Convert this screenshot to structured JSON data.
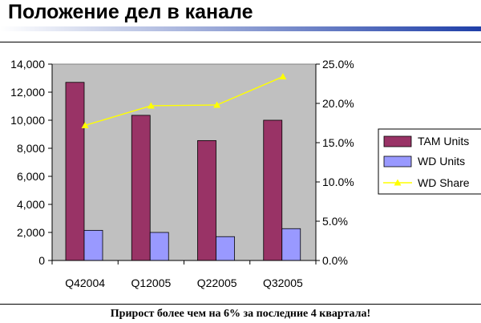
{
  "slide": {
    "title": "Положение дел в канале",
    "caption": "Прирост более чем на 6% за последние 4 квартала!"
  },
  "colors": {
    "title_bar_start": "#ffffff",
    "title_bar_end": "#1f3fa8",
    "plot_background": "#c0c0c0",
    "tam_units": "#993366",
    "wd_units": "#9999ff",
    "wd_share": "#ffff00"
  },
  "chart_data": {
    "type": "bar",
    "categories": [
      "Q42004",
      "Q12005",
      "Q22005",
      "Q32005"
    ],
    "series": [
      {
        "name": "TAM Units",
        "type": "bar",
        "axis": "left",
        "values": [
          12700,
          10350,
          8550,
          10000
        ]
      },
      {
        "name": "WD Units",
        "type": "bar",
        "axis": "left",
        "values": [
          2150,
          2000,
          1700,
          2270
        ]
      },
      {
        "name": "WD Share",
        "type": "line",
        "axis": "right",
        "marker": "triangle",
        "values": [
          0.172,
          0.197,
          0.198,
          0.234
        ]
      }
    ],
    "y_left": {
      "min": 0,
      "max": 14000,
      "ticks": [
        0,
        2000,
        4000,
        6000,
        8000,
        10000,
        12000,
        14000
      ],
      "tick_labels": [
        "0",
        "2,000",
        "4,000",
        "6,000",
        "8,000",
        "10,000",
        "12,000",
        "14,000"
      ]
    },
    "y_right": {
      "min": 0,
      "max": 0.25,
      "ticks": [
        0,
        0.05,
        0.1,
        0.15,
        0.2,
        0.25
      ],
      "tick_labels": [
        "0.0%",
        "5.0%",
        "10.0%",
        "15.0%",
        "20.0%",
        "25.0%"
      ]
    },
    "grid": false,
    "legend": "right"
  }
}
